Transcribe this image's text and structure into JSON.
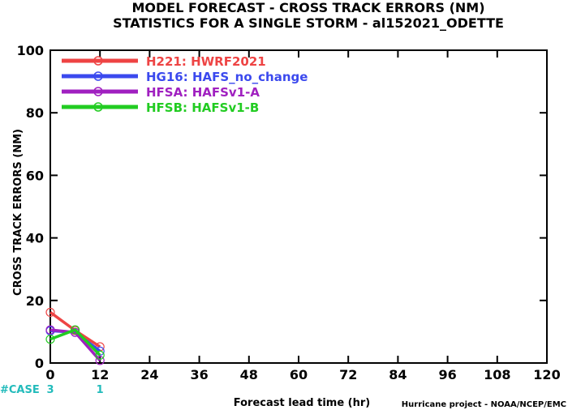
{
  "chart_data": {
    "type": "line",
    "title": "MODEL FORECAST - CROSS TRACK ERRORS (NM)",
    "subtitle": "STATISTICS FOR A SINGLE STORM - al152021_ODETTE",
    "xlabel": "Forecast lead time (hr)",
    "ylabel": "CROSS TRACK ERRORS (NM)",
    "xlim": [
      0,
      120
    ],
    "ylim": [
      0,
      100
    ],
    "x_ticks": [
      "0",
      "12",
      "24",
      "36",
      "48",
      "60",
      "72",
      "84",
      "96",
      "108",
      "120"
    ],
    "y_ticks": [
      "0",
      "20",
      "40",
      "60",
      "80",
      "100"
    ],
    "grid": false,
    "legend_position": "top-left",
    "x": [
      0,
      6,
      12
    ],
    "series": [
      {
        "name": "H221: HWRF2021",
        "color": "#ee4444",
        "values": [
          16.2,
          10.4,
          5.2
        ]
      },
      {
        "name": "HG16: HAFS_no_change",
        "color": "#3b49ee",
        "values": [
          10.3,
          9.8,
          3.8
        ]
      },
      {
        "name": "HFSA: HAFSv1-A",
        "color": "#a020c0",
        "values": [
          10.6,
          9.8,
          0.8
        ]
      },
      {
        "name": "HFSB: HAFSv1-B",
        "color": "#22cc22",
        "values": [
          7.6,
          10.6,
          2.5
        ]
      }
    ],
    "cases": {
      "label": "#CASE",
      "values": [
        {
          "x": 0,
          "count": "3"
        },
        {
          "x": 12,
          "count": "1"
        }
      ],
      "color": "#22bbbb"
    },
    "footer": "Hurricane project - NOAA/NCEP/EMC"
  }
}
